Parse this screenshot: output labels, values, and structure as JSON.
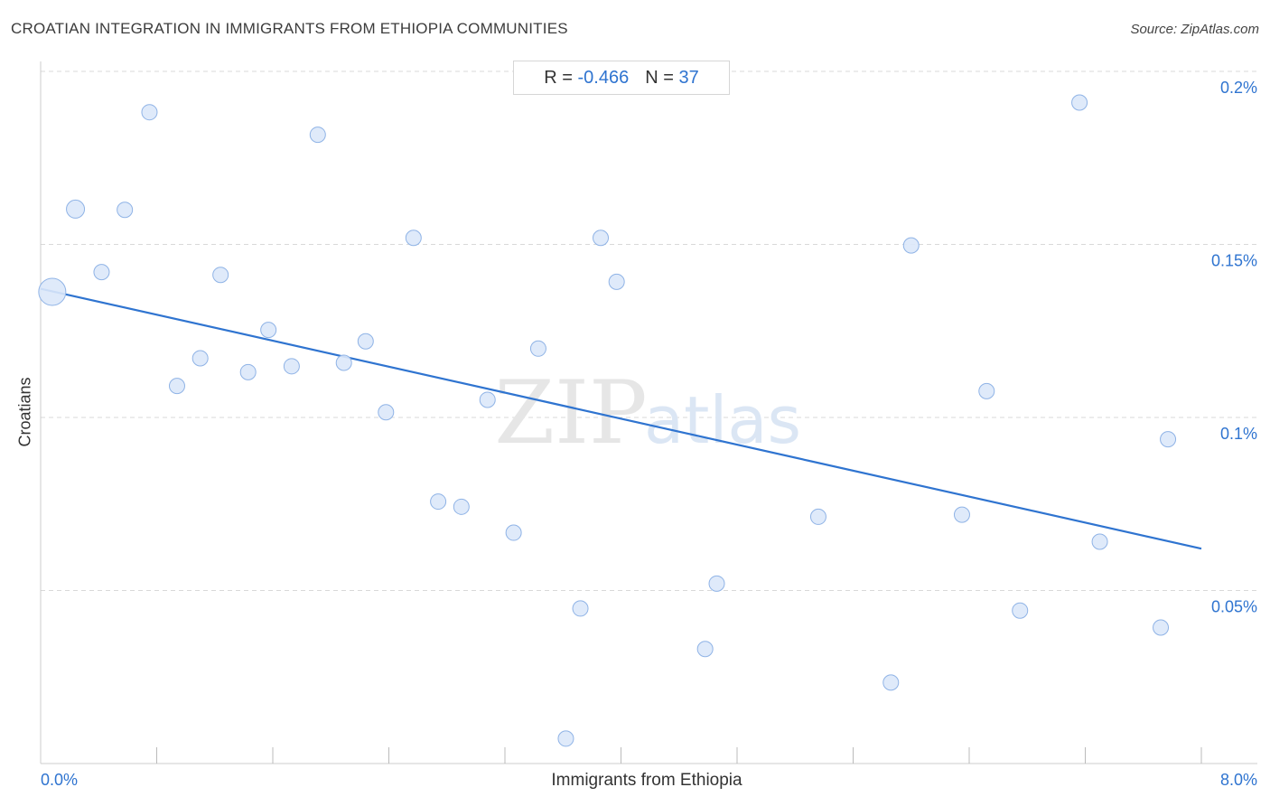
{
  "header": {
    "title": "CROATIAN INTEGRATION IN IMMIGRANTS FROM ETHIOPIA COMMUNITIES",
    "source": "Source: ZipAtlas.com"
  },
  "stats": {
    "r_label": "R =",
    "r_value": "-0.466",
    "n_label": "N =",
    "n_value": "37"
  },
  "watermark": {
    "zip": "ZIP",
    "atlas": "atlas"
  },
  "colors": {
    "accent": "#2f74d0",
    "point_fill": "#dbe8f9",
    "point_stroke": "#8fb3e6",
    "grid": "#d9d9d9"
  },
  "chart_data": {
    "type": "scatter",
    "title": "CROATIAN INTEGRATION IN IMMIGRANTS FROM ETHIOPIA COMMUNITIES",
    "xlabel": "Immigrants from Ethiopia",
    "ylabel": "Croatians",
    "xlim": [
      0,
      8.0
    ],
    "ylim": [
      0.0,
      0.2
    ],
    "x_unit": "%",
    "y_unit": "%",
    "x_tick_labels": [
      {
        "value": 0.0,
        "label": "0.0%"
      },
      {
        "value": 8.0,
        "label": "8.0%"
      }
    ],
    "y_tick_labels": [
      {
        "value": 0.05,
        "label": "0.05%"
      },
      {
        "value": 0.1,
        "label": "0.1%"
      },
      {
        "value": 0.15,
        "label": "0.15%"
      },
      {
        "value": 0.2,
        "label": "0.2%"
      }
    ],
    "grid": "horizontal dashed",
    "trendline": {
      "x": [
        0.0,
        8.0
      ],
      "y": [
        0.1372,
        0.0621
      ]
    },
    "points": [
      {
        "x": 0.08,
        "y": 0.1363,
        "size": "large"
      },
      {
        "x": 0.24,
        "y": 0.1602,
        "size": "medium"
      },
      {
        "x": 0.42,
        "y": 0.142
      },
      {
        "x": 0.58,
        "y": 0.16
      },
      {
        "x": 0.75,
        "y": 0.1882
      },
      {
        "x": 0.94,
        "y": 0.1091
      },
      {
        "x": 1.1,
        "y": 0.1171
      },
      {
        "x": 1.24,
        "y": 0.1412
      },
      {
        "x": 1.43,
        "y": 0.1131
      },
      {
        "x": 1.57,
        "y": 0.1253
      },
      {
        "x": 1.73,
        "y": 0.1148
      },
      {
        "x": 1.91,
        "y": 0.1817
      },
      {
        "x": 2.09,
        "y": 0.1158
      },
      {
        "x": 2.24,
        "y": 0.122
      },
      {
        "x": 2.38,
        "y": 0.1015
      },
      {
        "x": 2.57,
        "y": 0.1519
      },
      {
        "x": 2.74,
        "y": 0.0757
      },
      {
        "x": 2.9,
        "y": 0.0742
      },
      {
        "x": 3.08,
        "y": 0.1051
      },
      {
        "x": 3.26,
        "y": 0.0667
      },
      {
        "x": 3.43,
        "y": 0.1199
      },
      {
        "x": 3.62,
        "y": 0.0072
      },
      {
        "x": 3.72,
        "y": 0.0448
      },
      {
        "x": 3.86,
        "y": 0.1519
      },
      {
        "x": 3.97,
        "y": 0.1392
      },
      {
        "x": 4.58,
        "y": 0.0331
      },
      {
        "x": 4.66,
        "y": 0.052
      },
      {
        "x": 5.36,
        "y": 0.0713
      },
      {
        "x": 5.86,
        "y": 0.0234
      },
      {
        "x": 6.0,
        "y": 0.1497
      },
      {
        "x": 6.35,
        "y": 0.0719
      },
      {
        "x": 6.52,
        "y": 0.1076
      },
      {
        "x": 6.75,
        "y": 0.0442
      },
      {
        "x": 7.16,
        "y": 0.191
      },
      {
        "x": 7.3,
        "y": 0.0641
      },
      {
        "x": 7.72,
        "y": 0.0393
      },
      {
        "x": 7.77,
        "y": 0.0937
      }
    ]
  }
}
